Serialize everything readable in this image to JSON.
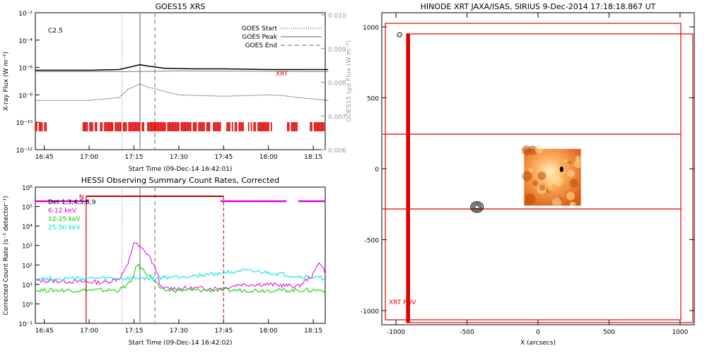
{
  "chart_data": [
    {
      "type": "line",
      "title": "GOES15 XRS",
      "xlabel": "Start Time (09-Dec-14 16:42:01)",
      "ylabel": "X-ray Flux (W m⁻²)",
      "ylabel_right": "GOES15 Lyα Flux (W m⁻²)",
      "class_label": "C2.5",
      "xlim_minutes_after_1642": [
        0,
        97
      ],
      "x_ticks": [
        "16:45",
        "17:00",
        "17:15",
        "17:30",
        "17:45",
        "18:00",
        "18:15"
      ],
      "y_ticks": [
        "10⁻²",
        "10⁻⁴",
        "10⁻⁶",
        "10⁻⁸",
        "10⁻¹⁰",
        "10⁻¹²"
      ],
      "y_ticks_right": [
        "0.010",
        "0.009",
        "0.008",
        "0.007",
        "0.006"
      ],
      "ylim_log10": [
        -12,
        -2
      ],
      "legend": [
        "GOES Start",
        "GOES Peak",
        "GOES End"
      ],
      "legend_position": "top-right",
      "xrt_label": "XRT",
      "events": {
        "start": "17:11",
        "peak": "17:17",
        "end": "17:22"
      },
      "series": [
        {
          "name": "",
          "color": "#000000",
          "x": [
            "16:42",
            "17:00",
            "17:10",
            "17:14",
            "17:17",
            "17:20",
            "17:25",
            "17:35",
            "17:45",
            "18:00",
            "18:20"
          ],
          "log10_y": [
            -6.2,
            -6.2,
            -6.15,
            -5.95,
            -5.8,
            -5.9,
            -6.05,
            -6.1,
            -6.1,
            -6.15,
            -6.15
          ]
        },
        {
          "name": "",
          "color": "#777777",
          "x": [
            "16:42",
            "17:15",
            "17:30",
            "18:20"
          ],
          "log10_y": [
            -6.3,
            -6.3,
            -6.25,
            -6.3
          ]
        },
        {
          "name": "",
          "color": "#000000",
          "style": "dotted",
          "x": [
            "16:42",
            "17:00",
            "17:10",
            "17:13",
            "17:17",
            "17:20",
            "17:30",
            "17:45",
            "18:00",
            "18:05",
            "18:10",
            "18:20"
          ],
          "log10_y": [
            -8.4,
            -8.4,
            -8.2,
            -7.6,
            -7.2,
            -7.45,
            -8.0,
            -8.1,
            -8.0,
            -8.05,
            -8.2,
            -8.4
          ]
        }
      ],
      "xrt_coverage_minutes": [
        [
          0,
          4
        ],
        [
          16,
          97
        ]
      ]
    },
    {
      "type": "line",
      "title": "HESSI Observing Summary Count Rates, Corrected",
      "xlabel": "Start Time (09-Dec-14 16:42:02)",
      "ylabel": "Corrected Count Rate (s⁻¹ detector⁻¹)",
      "y_ticks": [
        "10⁵",
        "10⁴",
        "10³",
        "10²",
        "10¹",
        "10⁰",
        "10⁻¹"
      ],
      "y_tick_top": "10⁶",
      "x_ticks": [
        "16:45",
        "17:00",
        "17:15",
        "17:30",
        "17:45",
        "18:00",
        "18:15"
      ],
      "ylim_log10": [
        -1,
        6
      ],
      "legend_text": "Det 1,3,4,5,6,9",
      "night_label": "N",
      "series": [
        {
          "name": "6-12 keV",
          "color": "#e000e0",
          "x": [
            "16:42",
            "17:05",
            "17:10",
            "17:13",
            "17:15",
            "17:17",
            "17:20",
            "17:23",
            "17:24",
            "17:45",
            "17:50",
            "18:00",
            "18:10",
            "18:15",
            "18:17",
            "18:20"
          ],
          "log10_y": [
            1.2,
            1.1,
            1.3,
            2.0,
            3.2,
            2.9,
            2.5,
            1.5,
            0.8,
            0.8,
            1.0,
            1.0,
            0.9,
            1.5,
            2.2,
            1.3
          ]
        },
        {
          "name": "12-25 keV",
          "color": "#00cc00",
          "x": [
            "16:42",
            "17:10",
            "17:14",
            "17:16",
            "17:20",
            "17:23",
            "17:24",
            "17:45",
            "18:00",
            "18:20"
          ],
          "log10_y": [
            0.7,
            0.7,
            1.1,
            2.0,
            1.5,
            1.0,
            0.7,
            0.7,
            0.7,
            0.7
          ]
        },
        {
          "name": "25-50 keV",
          "color": "#00dddd",
          "x": [
            "16:42",
            "17:20",
            "17:40",
            "17:50",
            "18:00",
            "18:10",
            "18:20"
          ],
          "log10_y": [
            1.3,
            1.3,
            1.5,
            1.7,
            1.6,
            1.4,
            1.3
          ]
        }
      ],
      "flags_magenta_minutes": [
        [
          0,
          18
        ],
        [
          62,
          84
        ],
        [
          88,
          97
        ]
      ],
      "night_bar_minutes": [
        17,
        63
      ]
    },
    {
      "type": "scatter",
      "title": "HINODE XRT JAXA/ISAS, SIRIUS   9-Dec-2014 17:18:18.867 UT",
      "xlabel": "X (arcsecs)",
      "ylabel": "",
      "xlim": [
        -1100,
        1100
      ],
      "ylim": [
        -1100,
        1100
      ],
      "x_ticks": [
        "-1000",
        "-500",
        "0",
        "500",
        "1000"
      ],
      "y_ticks": [
        "1000",
        "500",
        "0",
        "-500",
        "-1000"
      ],
      "fov_label": "XRT FOV",
      "image_center": [
        102,
        -60
      ],
      "image_halfwidth": 200,
      "contour_center": [
        -430,
        -270
      ],
      "marker_point": [
        -975,
        945
      ]
    }
  ]
}
